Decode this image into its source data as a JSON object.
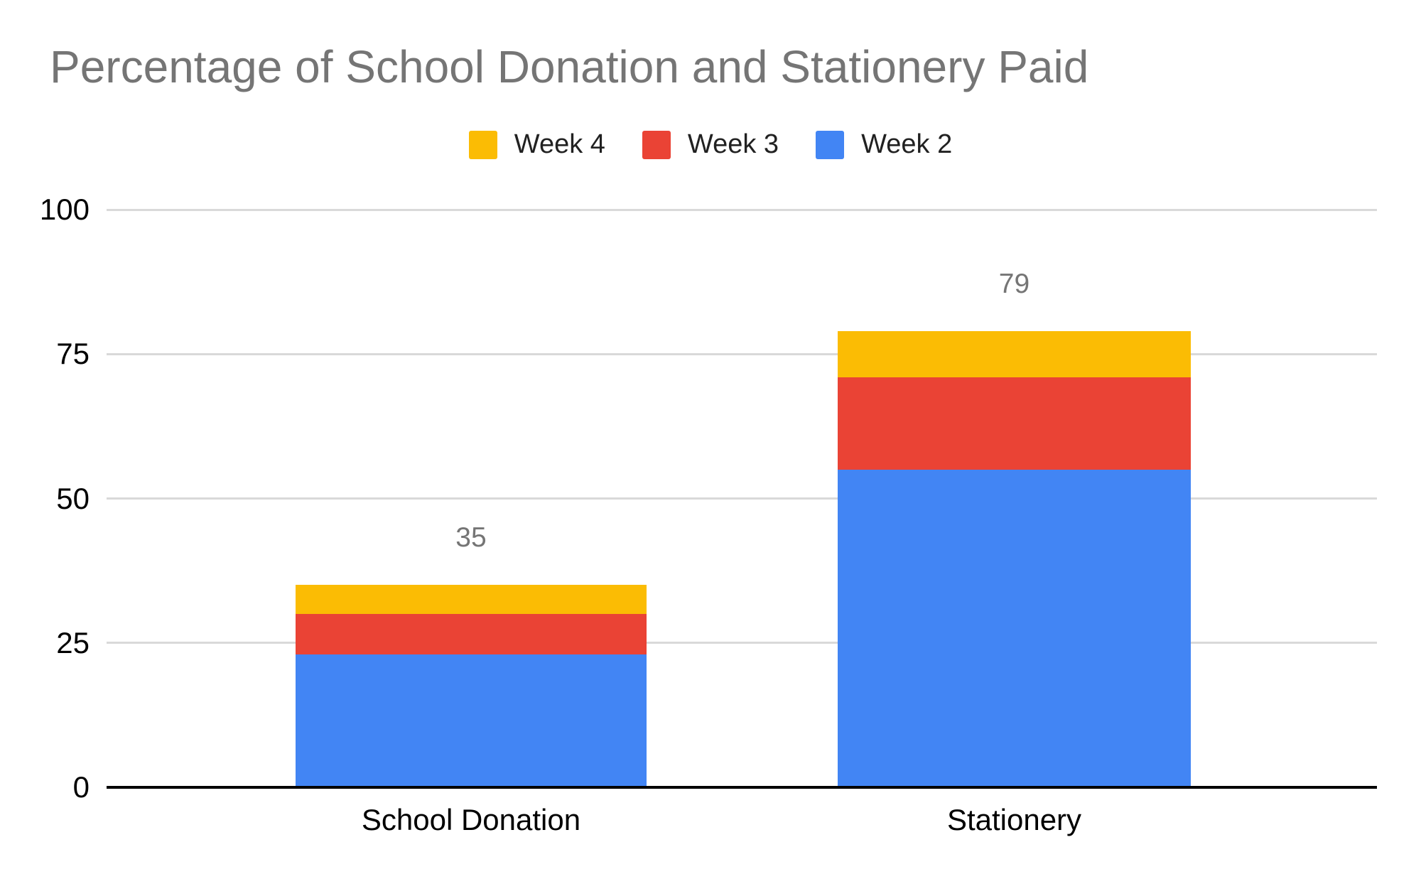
{
  "chart_data": {
    "type": "bar",
    "stacked": true,
    "title": "Percentage of School Donation and Stationery Paid",
    "categories": [
      "School Donation",
      "Stationery"
    ],
    "series": [
      {
        "name": "Week 2",
        "color": "#4285F4",
        "values": [
          23,
          55
        ]
      },
      {
        "name": "Week 3",
        "color": "#EA4335",
        "values": [
          7,
          16
        ]
      },
      {
        "name": "Week 4",
        "color": "#FBBC04",
        "values": [
          5,
          8
        ]
      }
    ],
    "totals": [
      35,
      79
    ],
    "data_labels": [
      "35",
      "79"
    ],
    "xlabel": "",
    "ylabel": "",
    "ylim": [
      0,
      100
    ],
    "yticks": [
      0,
      25,
      50,
      75,
      100
    ],
    "grid": true,
    "legend": {
      "position": "top-center",
      "items": [
        {
          "label": "Week 4",
          "color": "#FBBC04"
        },
        {
          "label": "Week 3",
          "color": "#EA4335"
        },
        {
          "label": "Week 2",
          "color": "#4285F4"
        }
      ]
    },
    "colors": {
      "title_text": "#757575",
      "data_label_text": "#757575",
      "axis_text": "#000000",
      "gridline": "#d9d9d9",
      "axis_line": "#000000",
      "background": "#ffffff"
    }
  }
}
